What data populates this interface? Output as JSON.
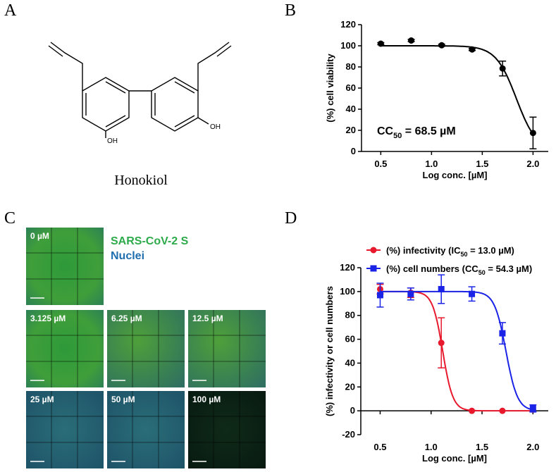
{
  "panel_labels": [
    "A",
    "B",
    "C",
    "D"
  ],
  "structure": {
    "name": "Honokiol",
    "groups": [
      "OH",
      "OH"
    ]
  },
  "images": {
    "legend": [
      "SARS-CoV-2 S",
      "Nuclei"
    ],
    "labels": [
      "0 µM",
      "3.125 µM",
      "6.25 µM",
      "12.5 µM",
      "25 µM",
      "50 µM",
      "100 µM"
    ]
  },
  "chart_data": [
    {
      "type": "scatter",
      "xlabel": "Log conc. [µM]",
      "ylabel": "(%) cell viability",
      "annotation": [
        "CC",
        "50",
        " = 68.5 µM"
      ],
      "xlim": [
        0.31,
        2.15
      ],
      "xticks": [
        0.5,
        {
          "value": 1.0,
          "label": "1.0"
        },
        1.5,
        {
          "value": 2.0,
          "label": "2.0"
        }
      ],
      "ylim": [
        0,
        120
      ],
      "yticks": [
        0,
        20,
        40,
        60,
        80,
        100,
        120
      ],
      "series": [
        {
          "color": "#000000",
          "marker": "circle",
          "x": [
            0.5,
            0.8,
            1.1,
            1.4,
            1.7,
            2.0
          ],
          "values": [
            102,
            105,
            100.5,
            96.5,
            78.5,
            17.5
          ],
          "errors": [
            1,
            1,
            1,
            1,
            7,
            15
          ],
          "fit": {
            "top": 100,
            "bottom": 0,
            "logEC50": 1.836,
            "hill": 4.3
          }
        }
      ]
    },
    {
      "type": "scatter",
      "xlabel": "Log conc. [µM]",
      "ylabel": "(%) infectivity or cell numbers",
      "xlim": [
        0.31,
        2.15
      ],
      "xticks": [
        0.5,
        {
          "value": 1.0,
          "label": "1.0"
        },
        1.5,
        {
          "value": 2.0,
          "label": "2.0"
        }
      ],
      "ylim": [
        -20,
        120
      ],
      "yticks": [
        -20,
        0,
        20,
        40,
        60,
        80,
        100,
        120
      ],
      "series": [
        {
          "name": [
            "(%) infectivity (IC",
            "50",
            " = 13.0 µM)"
          ],
          "color": "#e8192c",
          "marker": "circle",
          "x": [
            0.5,
            0.8,
            1.1,
            1.4,
            1.7,
            2.0
          ],
          "values": [
            102,
            99,
            57,
            0,
            0,
            1
          ],
          "errors": [
            4,
            4,
            21,
            0,
            0,
            0
          ],
          "fit": {
            "top": 100,
            "bottom": 0,
            "logEC50": 1.114,
            "hill": 8.7
          }
        },
        {
          "name": [
            "(%) cell numbers (CC",
            "50",
            " = 54.3 µM)"
          ],
          "color": "#1a23e6",
          "marker": "square",
          "x": [
            0.5,
            0.8,
            1.1,
            1.4,
            1.7,
            2.0
          ],
          "values": [
            97,
            98,
            102,
            98,
            65,
            2
          ],
          "errors": [
            10,
            5,
            12,
            6,
            9,
            3
          ],
          "fit": {
            "top": 100,
            "bottom": 0,
            "logEC50": 1.735,
            "hill": 7.7
          }
        }
      ]
    }
  ]
}
